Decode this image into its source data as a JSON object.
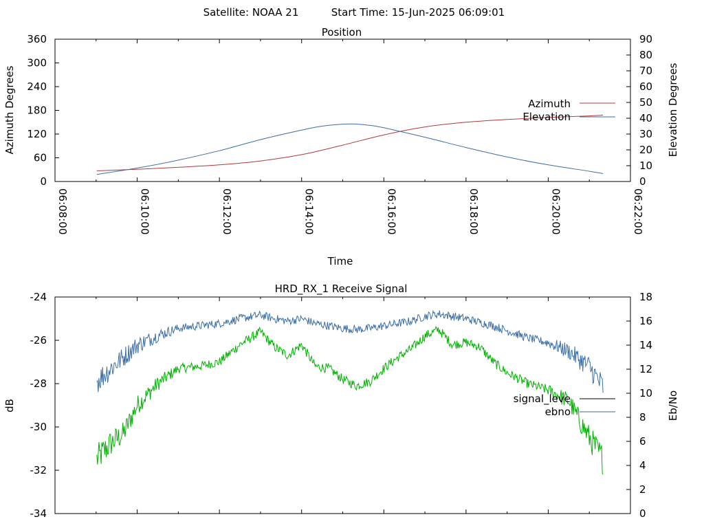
{
  "header": {
    "satellite": "Satellite: NOAA 21",
    "start_time": "Start Time: 15-Jun-2025 06:09:01"
  },
  "colors": {
    "azimuth": "#b03a3a",
    "elevation": "#3a6ea5",
    "signal_level": "#00b000",
    "ebno": "#3a6ea5",
    "signal_level_legend": "#000000"
  },
  "chart_data": [
    {
      "type": "line",
      "title": "Position",
      "xlabel": "Time",
      "ylabel": "Azimuth Degrees",
      "y2label": "Elevation Degrees",
      "xlim": [
        "06:08:00",
        "06:22:00"
      ],
      "ylim": [
        0,
        360
      ],
      "y2lim": [
        0,
        90
      ],
      "x_ticks": [
        "06:08:00",
        "06:10:00",
        "06:12:00",
        "06:14:00",
        "06:16:00",
        "06:18:00",
        "06:20:00",
        "06:22:00"
      ],
      "y_ticks": [
        0,
        60,
        120,
        180,
        240,
        300,
        360
      ],
      "y2_ticks": [
        0,
        10,
        20,
        30,
        40,
        50,
        60,
        70,
        80,
        90
      ],
      "legend": "right",
      "series": [
        {
          "name": "Azimuth",
          "axis": "y",
          "x": [
            "06:09:01",
            "06:10:00",
            "06:11:00",
            "06:12:00",
            "06:13:00",
            "06:14:00",
            "06:15:00",
            "06:16:00",
            "06:17:00",
            "06:18:00",
            "06:19:00",
            "06:20:00",
            "06:21:00",
            "06:21:20"
          ],
          "y": [
            27,
            31,
            36,
            42,
            52,
            68,
            92,
            118,
            138,
            150,
            157,
            162,
            166,
            168
          ]
        },
        {
          "name": "Elevation",
          "axis": "y2",
          "x": [
            "06:09:01",
            "06:10:00",
            "06:11:00",
            "06:12:00",
            "06:13:00",
            "06:14:00",
            "06:14:30",
            "06:15:10",
            "06:15:40",
            "06:16:00",
            "06:17:00",
            "06:18:00",
            "06:19:00",
            "06:20:00",
            "06:21:00",
            "06:21:20"
          ],
          "y": [
            4.5,
            8.5,
            13.5,
            19.5,
            26.5,
            32.5,
            35,
            36.4,
            35.5,
            34,
            28,
            21.5,
            15.5,
            10.5,
            6.5,
            5
          ]
        }
      ]
    },
    {
      "type": "line",
      "title": "HRD_RX_1 Receive Signal",
      "ylabel": "dB",
      "y2label": "Eb/No",
      "ylim": [
        -34,
        -24
      ],
      "y2lim": [
        0,
        18
      ],
      "y_ticks": [
        -34,
        -32,
        -30,
        -28,
        -26,
        -24
      ],
      "y2_ticks": [
        0,
        2,
        4,
        6,
        8,
        10,
        12,
        14,
        16,
        18
      ],
      "legend": "right",
      "series": [
        {
          "name": "signal_leve",
          "axis": "y",
          "x": [
            "06:09:01",
            "06:09:20",
            "06:09:40",
            "06:10:00",
            "06:10:30",
            "06:11:00",
            "06:11:30",
            "06:12:00",
            "06:12:30",
            "06:13:00",
            "06:13:20",
            "06:13:40",
            "06:14:00",
            "06:14:20",
            "06:14:40",
            "06:15:00",
            "06:15:20",
            "06:15:40",
            "06:16:00",
            "06:16:20",
            "06:16:40",
            "06:17:00",
            "06:17:20",
            "06:17:40",
            "06:18:00",
            "06:18:20",
            "06:18:40",
            "06:19:00",
            "06:19:30",
            "06:20:00",
            "06:20:30",
            "06:21:00",
            "06:21:20"
          ],
          "y": [
            -31.5,
            -30.8,
            -30.3,
            -29.0,
            -28.0,
            -27.3,
            -27.2,
            -27.0,
            -26.2,
            -25.6,
            -26.3,
            -26.7,
            -26.2,
            -27.2,
            -27.3,
            -27.8,
            -28.1,
            -27.9,
            -27.3,
            -26.8,
            -26.4,
            -25.8,
            -25.5,
            -26.2,
            -26.1,
            -26.3,
            -27.0,
            -27.5,
            -28.0,
            -28.3,
            -28.8,
            -30.5,
            -31.5
          ]
        },
        {
          "name": "ebno",
          "axis": "y2",
          "x": [
            "06:09:01",
            "06:09:20",
            "06:09:40",
            "06:10:00",
            "06:10:30",
            "06:11:00",
            "06:11:30",
            "06:12:00",
            "06:12:30",
            "06:13:00",
            "06:13:20",
            "06:13:40",
            "06:14:00",
            "06:14:20",
            "06:14:40",
            "06:15:00",
            "06:15:20",
            "06:15:40",
            "06:16:00",
            "06:16:20",
            "06:16:40",
            "06:17:00",
            "06:17:20",
            "06:17:40",
            "06:18:00",
            "06:18:20",
            "06:18:40",
            "06:19:00",
            "06:19:30",
            "06:20:00",
            "06:20:30",
            "06:21:00",
            "06:21:20"
          ],
          "y": [
            11.0,
            12.0,
            13.0,
            14.0,
            14.8,
            15.4,
            15.6,
            15.8,
            16.2,
            16.5,
            16.2,
            16.0,
            16.2,
            15.8,
            15.6,
            15.4,
            15.3,
            15.4,
            15.6,
            15.8,
            16.0,
            16.4,
            16.6,
            16.4,
            16.2,
            15.9,
            15.6,
            15.2,
            14.6,
            14.2,
            13.5,
            12.2,
            10.5
          ]
        }
      ]
    }
  ]
}
